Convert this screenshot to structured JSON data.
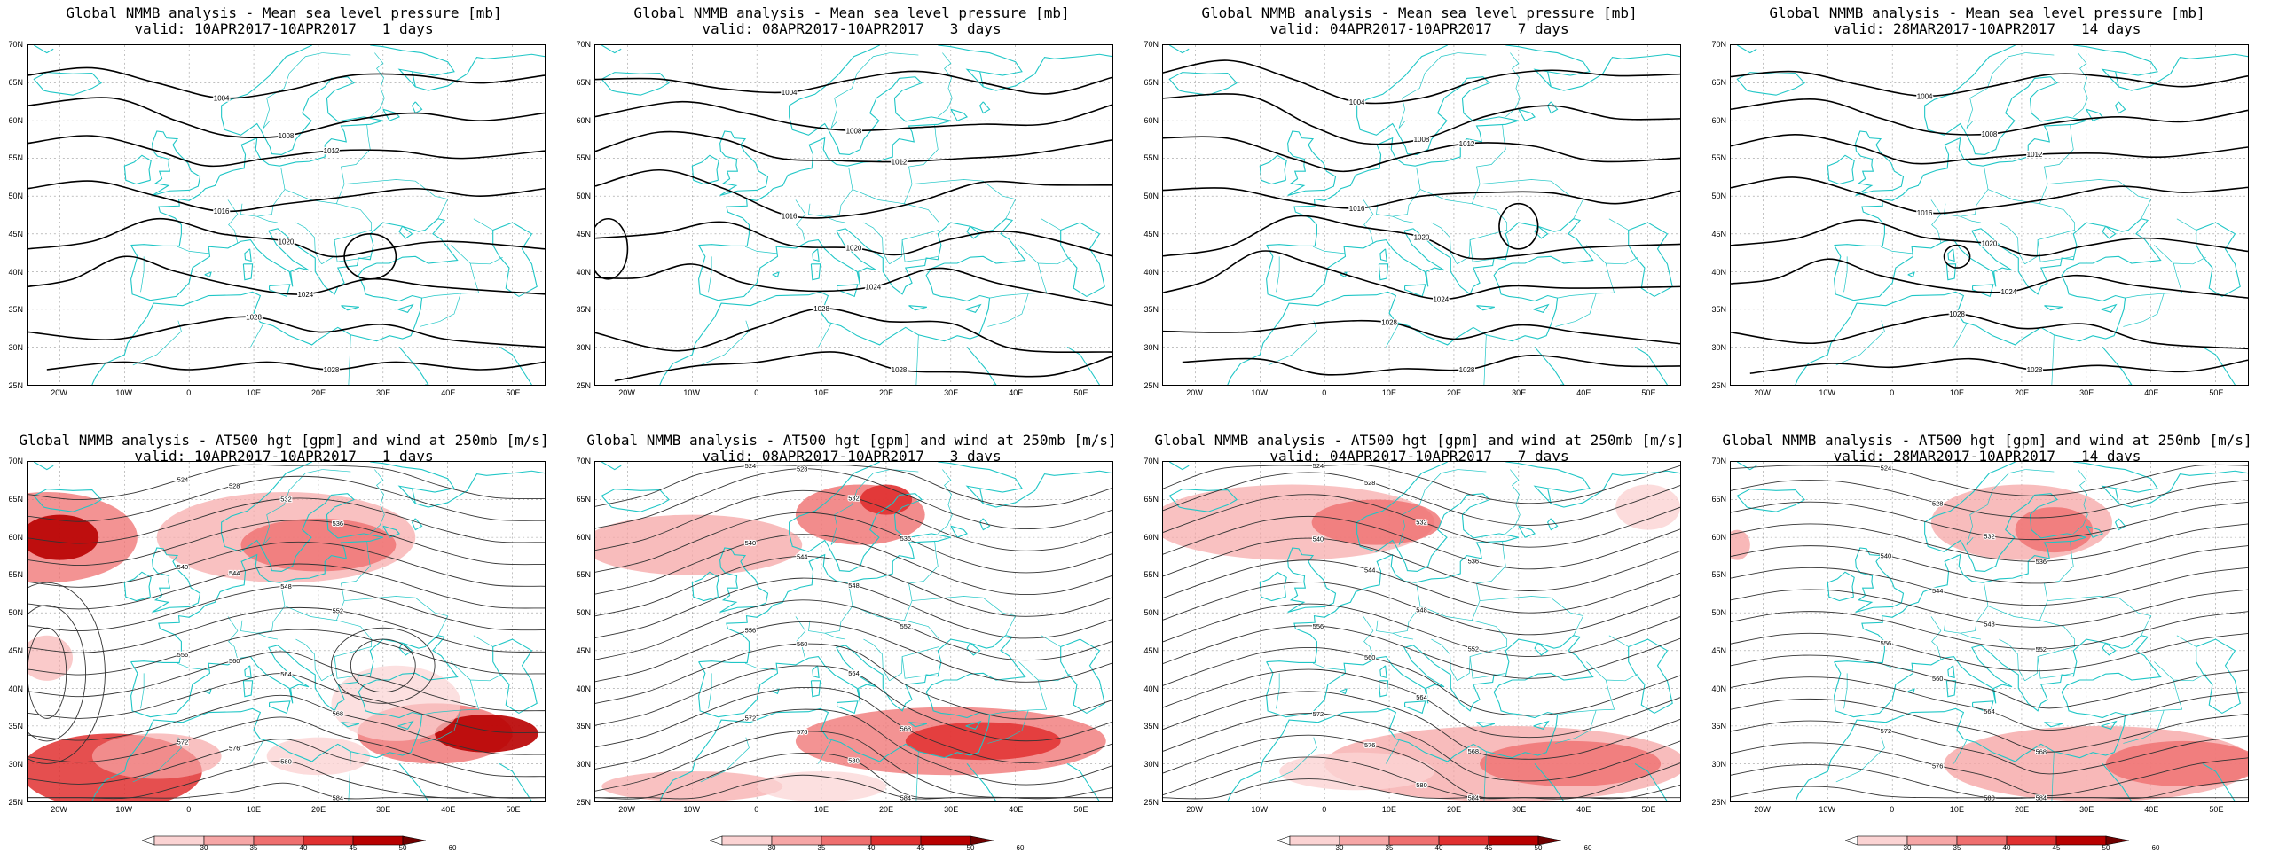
{
  "panels": [
    {
      "title": "Global NMMB analysis - Mean sea level pressure [mb]",
      "valid": "valid: 10APR2017-10APR2017   1 days"
    },
    {
      "title": "Global NMMB analysis - Mean sea level pressure [mb]",
      "valid": "valid: 08APR2017-10APR2017   3 days"
    },
    {
      "title": "Global NMMB analysis - Mean sea level pressure [mb]",
      "valid": "valid: 04APR2017-10APR2017   7 days"
    },
    {
      "title": "Global NMMB analysis - Mean sea level pressure [mb]",
      "valid": "valid: 28MAR2017-10APR2017   14 days"
    },
    {
      "title": "Global NMMB analysis - AT500 hgt [gpm] and wind at 250mb [m/s]",
      "valid": "valid: 10APR2017-10APR2017   1 days"
    },
    {
      "title": "Global NMMB analysis - AT500 hgt [gpm] and wind at 250mb [m/s]",
      "valid": "valid: 08APR2017-10APR2017   3 days"
    },
    {
      "title": "Global NMMB analysis - AT500 hgt [gpm] and wind at 250mb [m/s]",
      "valid": "valid: 04APR2017-10APR2017   7 days"
    },
    {
      "title": "Global NMMB analysis - AT500 hgt [gpm] and wind at 250mb [m/s]",
      "valid": "valid: 28MAR2017-10APR2017   14 days"
    }
  ],
  "lat_labels": [
    "70N",
    "65N",
    "60N",
    "55N",
    "50N",
    "45N",
    "40N",
    "35N",
    "30N",
    "25N"
  ],
  "lon_labels": [
    "20W",
    "10W",
    "0",
    "10E",
    "20E",
    "30E",
    "40E",
    "50E"
  ],
  "colorbar": {
    "labels": [
      "30",
      "35",
      "40",
      "45",
      "50",
      "60"
    ],
    "colors": [
      "#ffffff",
      "#fbd3d3",
      "#f6a6a6",
      "#ef6f6f",
      "#e03030",
      "#b80000",
      "#700000"
    ]
  },
  "colors": {
    "coast": "#1fc6c6",
    "contour": "#000000",
    "grid": "#9a9a9a"
  },
  "mslp_contour_labels": [
    "1004",
    "1008",
    "1012",
    "1016",
    "1020",
    "1024",
    "1028"
  ],
  "hgt_contour_labels": [
    "524",
    "528",
    "532",
    "536",
    "540",
    "544",
    "548",
    "552",
    "556",
    "560",
    "564",
    "568",
    "572",
    "576",
    "580",
    "584"
  ]
}
